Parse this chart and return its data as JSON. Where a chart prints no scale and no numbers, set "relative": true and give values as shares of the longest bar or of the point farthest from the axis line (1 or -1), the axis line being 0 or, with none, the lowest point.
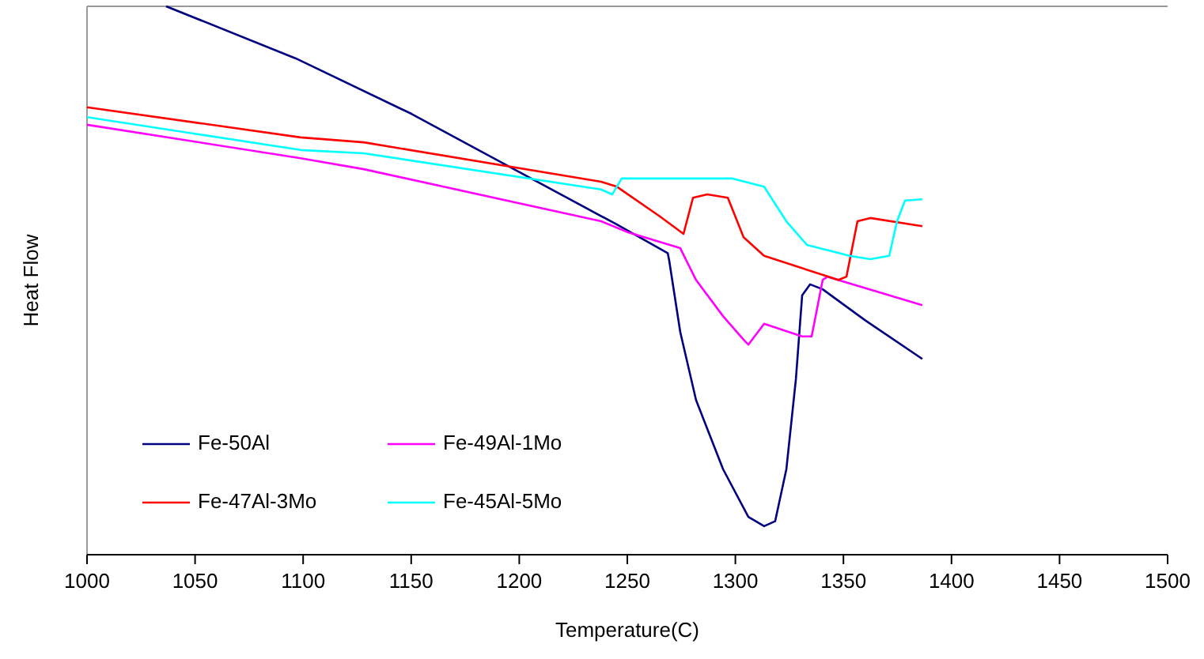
{
  "chart_data": {
    "type": "line",
    "relative": true,
    "xlabel": "Temperature(C)",
    "ylabel": "Heat Flow",
    "xlim": [
      1000,
      1500
    ],
    "xticks": [
      1000,
      1050,
      1100,
      1150,
      1200,
      1250,
      1300,
      1350,
      1400,
      1450,
      1500
    ],
    "legend": "bottom left",
    "grid": false,
    "marker": "none",
    "line_style": "solid",
    "series": [
      {
        "name": "Fe-50Al",
        "color": "#000080",
        "x": [
          1036.6,
          1096.6,
          1150.1,
          1201.3,
          1245.2,
          1268.7,
          1269.4,
          1274.5,
          1281.8,
          1294.3,
          1306.0,
          1313.3,
          1318.4,
          1323.6,
          1328.0,
          1330.9,
          1334.6,
          1340.4,
          1360.2,
          1386.5
        ],
        "values": [
          1.0,
          0.905,
          0.804,
          0.695,
          0.602,
          0.55,
          0.536,
          0.406,
          0.282,
          0.156,
          0.069,
          0.052,
          0.061,
          0.156,
          0.32,
          0.473,
          0.493,
          0.484,
          0.427,
          0.357
        ]
      },
      {
        "name": "Fe-49Al-1Mo",
        "color": "#ff00ff",
        "x": [
          1000,
          1098.8,
          1128.1,
          1237.9,
          1250.4,
          1274.5,
          1281.8,
          1294.3,
          1303.8,
          1306.0,
          1313.3,
          1330.9,
          1335.3,
          1340.4,
          1342.6,
          1386.5
        ],
        "values": [
          0.784,
          0.723,
          0.703,
          0.608,
          0.588,
          0.559,
          0.501,
          0.435,
          0.392,
          0.383,
          0.421,
          0.398,
          0.398,
          0.501,
          0.507,
          0.455
        ]
      },
      {
        "name": "Fe-47Al-3Mo",
        "color": "#ff0000",
        "x": [
          1000,
          1098.8,
          1128.1,
          1237.9,
          1245.2,
          1265.0,
          1276.0,
          1280.4,
          1287.0,
          1296.5,
          1303.8,
          1313.3,
          1347.7,
          1351.4,
          1356.5,
          1362.4,
          1386.5
        ],
        "values": [
          0.816,
          0.761,
          0.752,
          0.68,
          0.671,
          0.617,
          0.585,
          0.651,
          0.657,
          0.651,
          0.579,
          0.545,
          0.501,
          0.507,
          0.608,
          0.614,
          0.599
        ]
      },
      {
        "name": "Fe-45Al-5Mo",
        "color": "#00ffff",
        "x": [
          1000,
          1098.8,
          1128.1,
          1237.9,
          1243.0,
          1247.4,
          1254.8,
          1298.7,
          1313.3,
          1323.6,
          1333.1,
          1352.9,
          1362.4,
          1371.2,
          1374.8,
          1378.5,
          1386.5
        ],
        "values": [
          0.798,
          0.738,
          0.732,
          0.666,
          0.657,
          0.686,
          0.686,
          0.686,
          0.671,
          0.608,
          0.565,
          0.545,
          0.539,
          0.545,
          0.608,
          0.646,
          0.648
        ]
      }
    ]
  }
}
